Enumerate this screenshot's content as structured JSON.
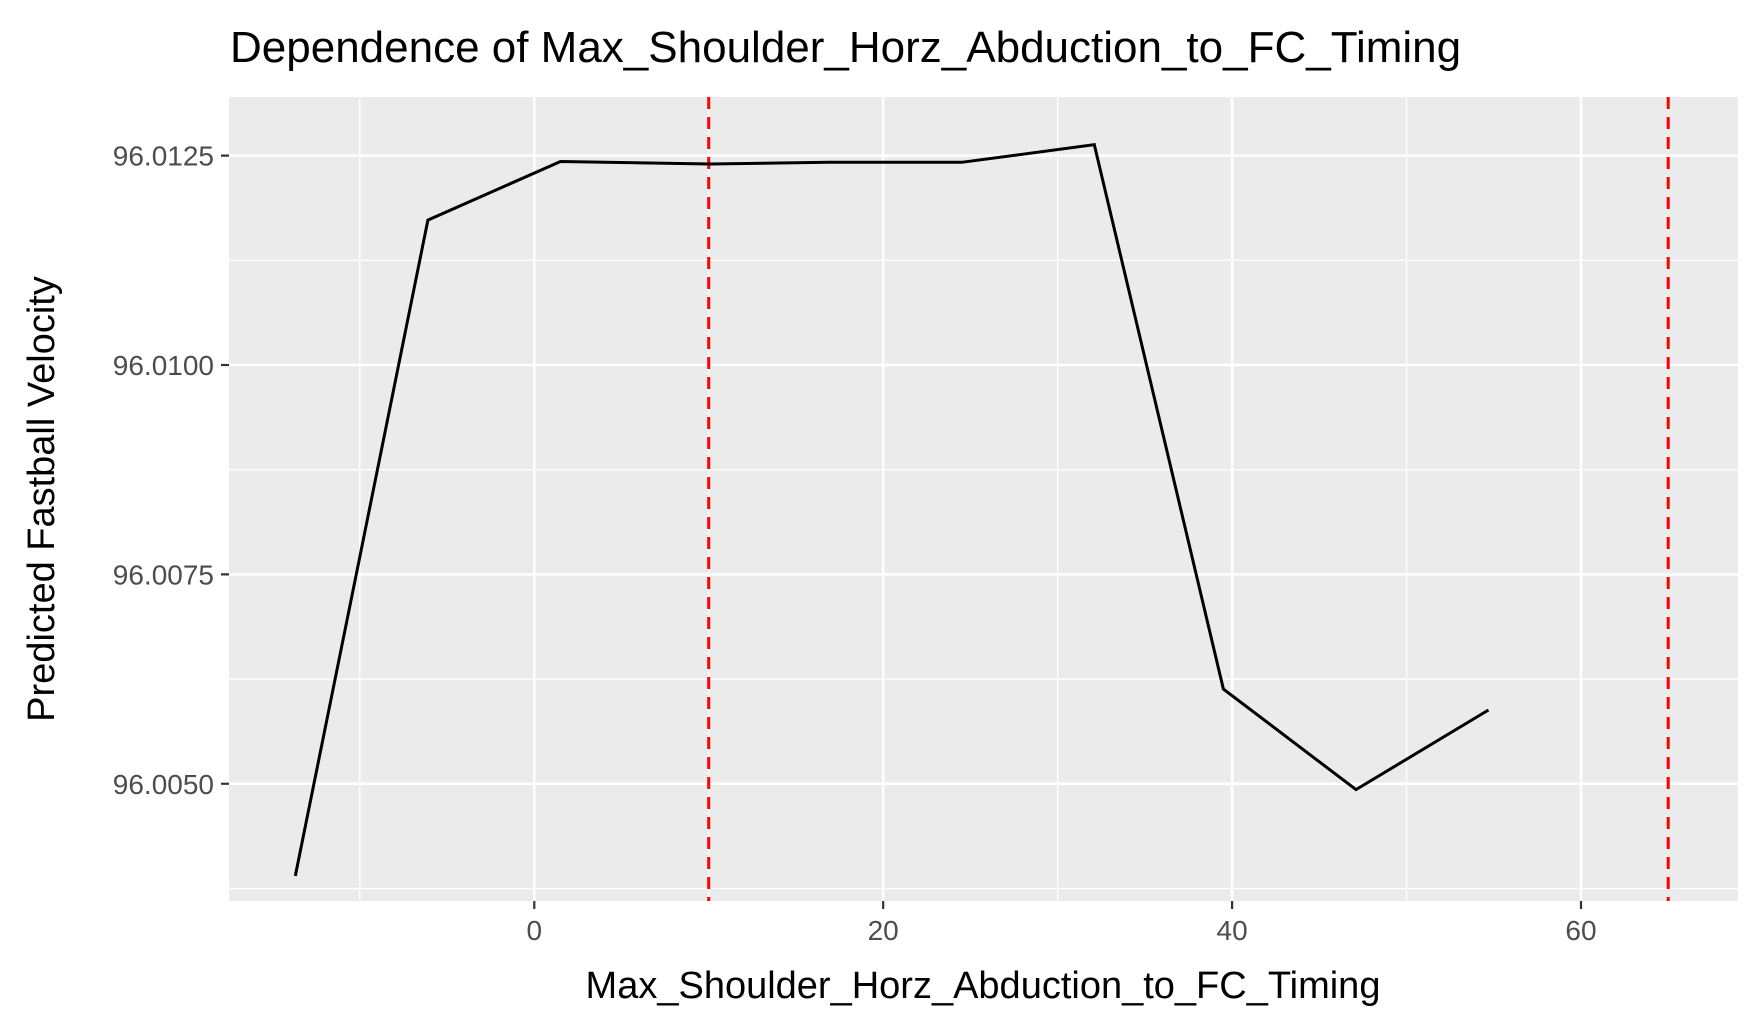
{
  "chart_data": {
    "type": "line",
    "title": "Dependence of Max_Shoulder_Horz_Abduction_to_FC_Timing",
    "xlabel": "Max_Shoulder_Horz_Abduction_to_FC_Timing",
    "ylabel": "Predicted Fastball Velocity",
    "xlim": [
      -17.5,
      69
    ],
    "ylim": [
      96.0036,
      96.0132
    ],
    "x_ticks": [
      0,
      20,
      40,
      60
    ],
    "y_ticks": [
      96.005,
      96.0075,
      96.01,
      96.0125
    ],
    "x_tick_labels": [
      "0",
      "20",
      "40",
      "60"
    ],
    "y_tick_labels": [
      "96.0050",
      "96.0075",
      "96.0100",
      "96.0125"
    ],
    "x_minor_ticks": [
      -10,
      10,
      30,
      50
    ],
    "y_minor_ticks": [
      96.00375,
      96.00625,
      96.00875,
      96.01125
    ],
    "grid": true,
    "series": [
      {
        "x": [
          -13.7,
          -6.1,
          1.5,
          10.1,
          16.9,
          24.5,
          32.1,
          39.5,
          47.1,
          54.7
        ],
        "y": [
          96.0039,
          96.01173,
          96.01243,
          96.0124,
          96.01242,
          96.01242,
          96.01263,
          96.00613,
          96.00493,
          96.00588
        ],
        "color": "#000000"
      }
    ],
    "vlines": [
      {
        "x": 10,
        "color": "#ff0000",
        "style": "dashed"
      },
      {
        "x": 65,
        "color": "#ff0000",
        "style": "dashed"
      }
    ],
    "colors": {
      "panel": "#ebebeb",
      "grid": "#ffffff",
      "tick_text": "#4d4d4d"
    }
  }
}
